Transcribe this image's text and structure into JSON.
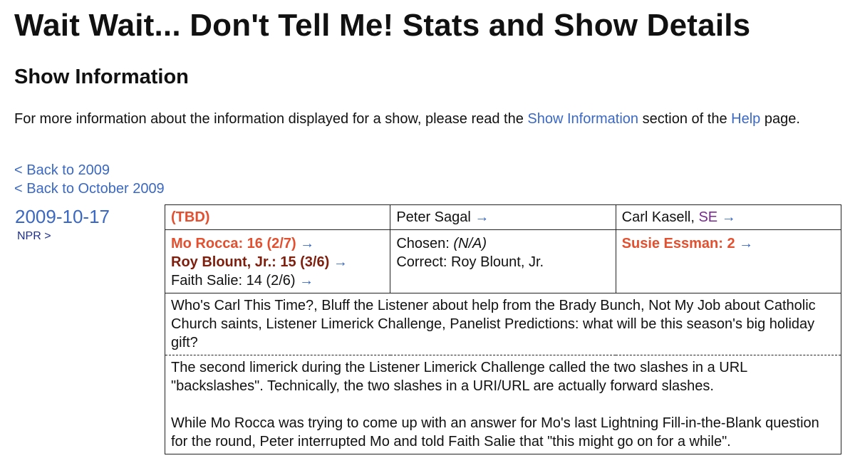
{
  "page_title": "Wait Wait... Don't Tell Me! Stats and Show Details",
  "section_title": "Show Information",
  "intro": {
    "before": "For more information about the information displayed for a show, please read the ",
    "link1": "Show Information",
    "middle": " section of the ",
    "link2": "Help",
    "after": " page."
  },
  "nav": {
    "back_year": "< Back to 2009",
    "back_month": "< Back to October 2009"
  },
  "show": {
    "date": "2009-10-17",
    "npr_link": "NPR >",
    "location": "(TBD)",
    "host": "Peter Sagal",
    "scorekeeper": "Carl Kasell, ",
    "scorekeeper_suffix": "SE",
    "arrow": "→",
    "panelists": [
      {
        "text": "Mo Rocca: 16 (2/7)",
        "style": "winner"
      },
      {
        "text": "Roy Blount, Jr.: 15 (3/6)",
        "style": "second"
      },
      {
        "text": "Faith Salie: 14 (2/6)",
        "style": "normal"
      }
    ],
    "bluff": {
      "chosen_label": "Chosen: ",
      "chosen_value": "(N/A)",
      "correct": "Correct: Roy Blount, Jr."
    },
    "guest": "Susie Essman: 2",
    "description": "Who's Carl This Time?, Bluff the Listener about help from the Brady Bunch, Not My Job about Catholic Church saints, Listener Limerick Challenge, Panelist Predictions: what will be this season's big holiday gift?",
    "notes": [
      "The second limerick during the Listener Limerick Challenge called the two slashes in a URL \"backslashes\". Technically, the two slashes in a URI/URL are actually forward slashes.",
      "While Mo Rocca was trying to come up with an answer for Mo's last Lightning Fill-in-the-Blank question for the round, Peter interrupted Mo and told Faith Salie that \"this might go on for a while\"."
    ]
  },
  "colors": {
    "link": "#3a68c4",
    "winner": "#e2502f",
    "second": "#7e1f0e",
    "scorekeeper_suffix": "#7a2b8f"
  }
}
